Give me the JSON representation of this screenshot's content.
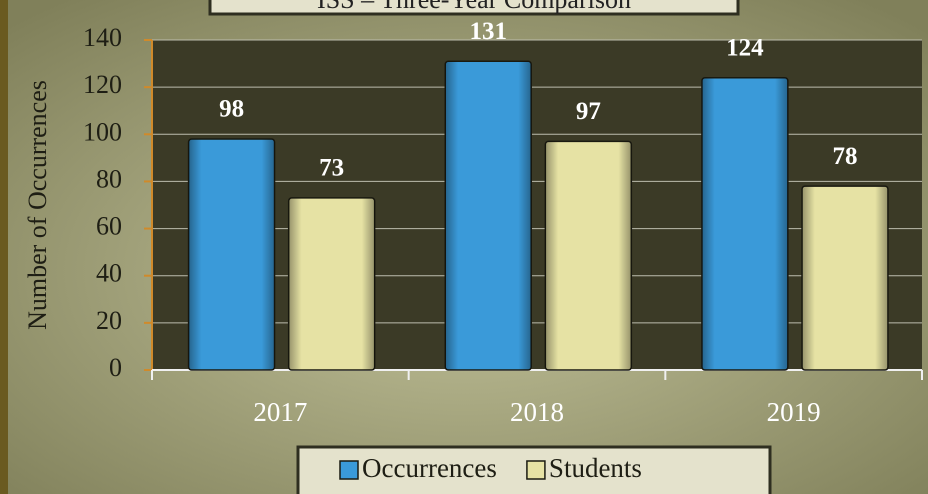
{
  "chart_data": {
    "type": "bar",
    "title": "ISS – Three-Year Comparison",
    "y_label": "Number of Occurrences",
    "categories": [
      "2017",
      "2018",
      "2019"
    ],
    "series": [
      {
        "name": "Occurrences",
        "color": "#3a9ad9",
        "values": [
          98,
          131,
          124
        ]
      },
      {
        "name": "Students",
        "color": "#e6e2a4",
        "values": [
          73,
          97,
          78
        ]
      }
    ],
    "ylim": [
      0,
      140
    ],
    "yticks": [
      0,
      20,
      40,
      60,
      80,
      100,
      120,
      140
    ],
    "grid": true,
    "legend": "bottom"
  }
}
